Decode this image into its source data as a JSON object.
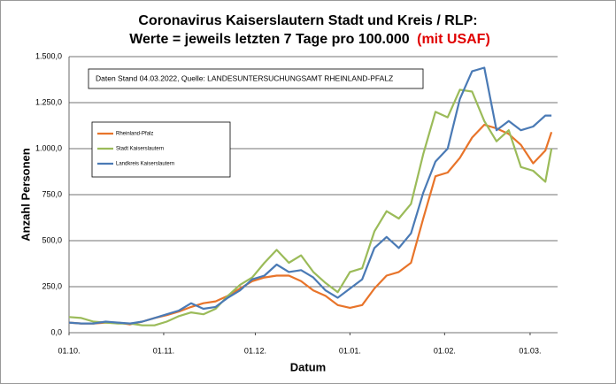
{
  "chart_data": {
    "type": "line",
    "title": "Coronavirus Kaiserslautern Stadt und Kreis / RLP:",
    "subtitle": "Werte = jeweils letzten 7 Tage pro 100.000",
    "subtitle_highlight": "(mit USAF)",
    "annotation": "Daten Stand 04.03.2022, Quelle: LANDESUNTERSUCHUNGSAMT RHEINLAND-PFALZ",
    "x_label": "Datum",
    "y_label": "Anzahl Personen",
    "x": [
      0,
      4,
      8,
      12,
      16,
      20,
      24,
      28,
      32,
      36,
      40,
      44,
      48,
      52,
      56,
      60,
      64,
      68,
      72,
      76,
      80,
      84,
      88,
      92,
      96,
      100,
      104,
      108,
      112,
      116,
      120,
      124,
      128,
      132,
      136,
      140,
      144,
      148,
      152,
      156,
      158
    ],
    "xlim": [
      0,
      160
    ],
    "xticks": [
      {
        "value": 0,
        "label": "01.10."
      },
      {
        "value": 31,
        "label": "01.11."
      },
      {
        "value": 61,
        "label": "01.12."
      },
      {
        "value": 92,
        "label": "01.01."
      },
      {
        "value": 123,
        "label": "01.02."
      },
      {
        "value": 151,
        "label": "01.03."
      }
    ],
    "ylim": [
      0,
      1500
    ],
    "yticks": [
      {
        "value": 0,
        "label": "0,0"
      },
      {
        "value": 250,
        "label": "250,0"
      },
      {
        "value": 500,
        "label": "500,0"
      },
      {
        "value": 750,
        "label": "750,0"
      },
      {
        "value": 1000,
        "label": "1.000,0"
      },
      {
        "value": 1250,
        "label": "1.250,0"
      },
      {
        "value": 1500,
        "label": "1.500,0"
      }
    ],
    "grid": true,
    "series": [
      {
        "name": "Rheinland-Pfalz",
        "color": "#e8742a",
        "values": [
          55,
          50,
          50,
          55,
          55,
          45,
          60,
          80,
          95,
          115,
          140,
          160,
          170,
          200,
          240,
          280,
          300,
          310,
          310,
          280,
          230,
          200,
          150,
          135,
          150,
          240,
          310,
          330,
          380,
          620,
          850,
          870,
          950,
          1060,
          1130,
          1110,
          1080,
          1020,
          920,
          990,
          1090
        ]
      },
      {
        "name": "Stadt Kaiserslautern",
        "color": "#9bbb59",
        "values": [
          85,
          80,
          60,
          55,
          50,
          50,
          40,
          40,
          60,
          90,
          110,
          100,
          130,
          200,
          260,
          300,
          380,
          450,
          380,
          420,
          330,
          270,
          220,
          330,
          350,
          550,
          660,
          620,
          700,
          970,
          1200,
          1170,
          1320,
          1310,
          1150,
          1040,
          1100,
          900,
          880,
          820,
          1000
        ]
      },
      {
        "name": "Landkreis Kaiserslautern",
        "color": "#4a7ab5",
        "values": [
          55,
          50,
          50,
          60,
          55,
          50,
          60,
          80,
          100,
          120,
          160,
          130,
          140,
          190,
          230,
          290,
          310,
          370,
          330,
          340,
          300,
          230,
          190,
          240,
          290,
          460,
          520,
          460,
          540,
          760,
          930,
          1000,
          1270,
          1420,
          1440,
          1100,
          1150,
          1100,
          1120,
          1180,
          1180
        ]
      }
    ]
  }
}
